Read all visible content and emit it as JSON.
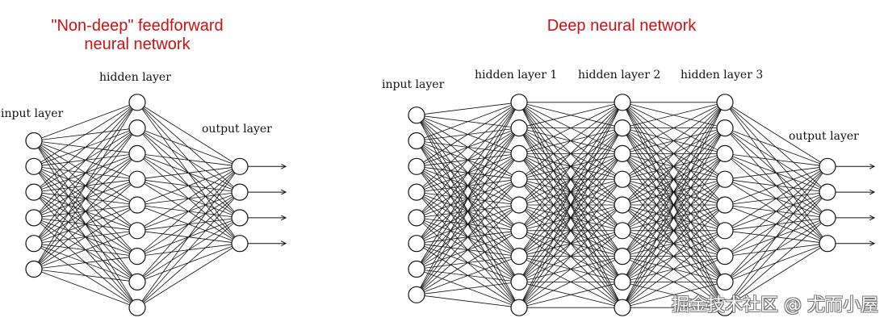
{
  "left": {
    "title_line1": "\"Non-deep\" feedforward",
    "title_line2": "neural network",
    "layers": [
      {
        "label": "input layer",
        "nodes": 6
      },
      {
        "label": "hidden layer",
        "nodes": 9
      },
      {
        "label": "output layer",
        "nodes": 4
      }
    ]
  },
  "right": {
    "title": "Deep neural network",
    "layers": [
      {
        "label": "input layer",
        "nodes": 8
      },
      {
        "label": "hidden layer 1",
        "nodes": 9
      },
      {
        "label": "hidden layer 2",
        "nodes": 9
      },
      {
        "label": "hidden layer 3",
        "nodes": 9
      },
      {
        "label": "output layer",
        "nodes": 4
      }
    ]
  },
  "watermark": "掘金技术社区 @ 尤而小屋",
  "colors": {
    "title": "#cc1111",
    "line": "#111111"
  }
}
